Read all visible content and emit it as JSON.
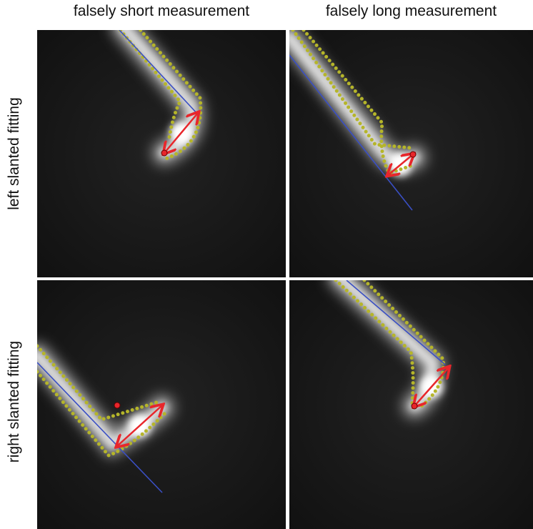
{
  "columns": [
    "falsely short measurement",
    "falsely long measurement"
  ],
  "rows": [
    "left slanted fitting",
    "right slanted fitting"
  ]
}
